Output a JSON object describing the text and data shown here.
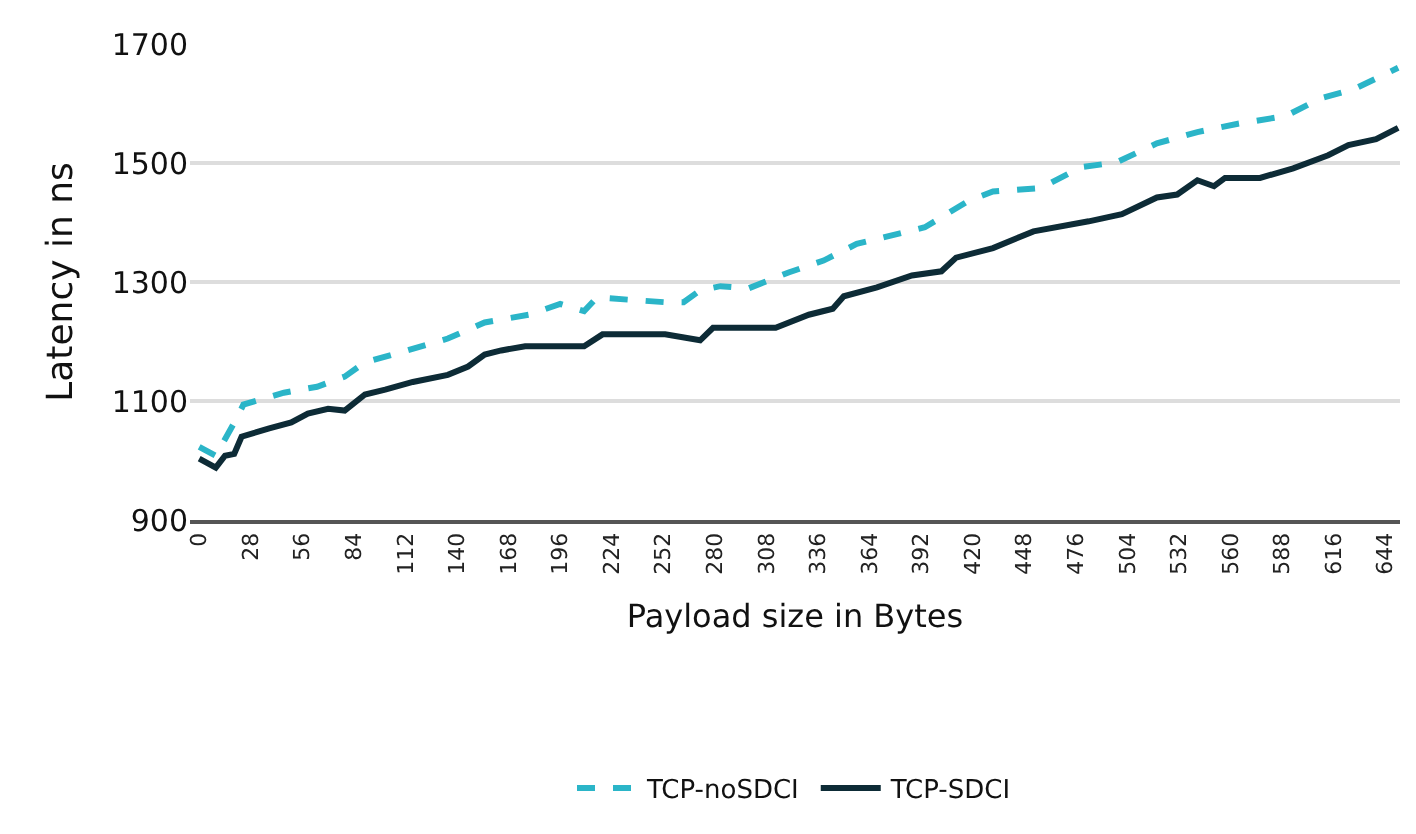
{
  "chart_data": {
    "type": "line",
    "xlabel": "Payload size in Bytes",
    "ylabel": "Latency in ns",
    "xlim": [
      -5,
      652
    ],
    "xticks": [
      0,
      28,
      56,
      84,
      112,
      140,
      168,
      196,
      224,
      252,
      280,
      308,
      336,
      364,
      392,
      420,
      448,
      476,
      504,
      532,
      560,
      588,
      616,
      644
    ],
    "ylim": [
      900,
      1700
    ],
    "yticks": [
      900,
      1100,
      1300,
      1500,
      1700
    ],
    "grid": "y",
    "legend": "bottom",
    "marker": "none",
    "series": [
      {
        "name": "TCP-noSDCI",
        "color": "#2bb5c8",
        "line_style": "dashed",
        "x": [
          0,
          9,
          20,
          24,
          46,
          64,
          79,
          90,
          113,
          135,
          155,
          179,
          196,
          209,
          216,
          253,
          263,
          272,
          283,
          298,
          320,
          339,
          357,
          394,
          418,
          431,
          457,
          479,
          498,
          520,
          542,
          564,
          590,
          609,
          627,
          651
        ],
        "values": [
          1023,
          1008,
          1069,
          1094,
          1114,
          1124,
          1141,
          1165,
          1185,
          1205,
          1232,
          1245,
          1263,
          1251,
          1274,
          1266,
          1266,
          1286,
          1293,
          1289,
          1316,
          1336,
          1364,
          1392,
          1437,
          1452,
          1458,
          1493,
          1501,
          1533,
          1552,
          1566,
          1579,
          1609,
          1624,
          1660
        ]
      },
      {
        "name": "TCP-SDCI",
        "color": "#0d2b36",
        "line_style": "solid",
        "x": [
          0,
          9,
          14,
          19,
          23,
          38,
          50,
          59,
          70,
          79,
          90,
          101,
          116,
          135,
          146,
          155,
          164,
          177,
          209,
          219,
          253,
          272,
          279,
          298,
          313,
          331,
          344,
          350,
          368,
          387,
          403,
          411,
          431,
          453,
          483,
          501,
          520,
          531,
          542,
          551,
          557,
          576,
          594,
          613,
          624,
          639,
          651
        ],
        "values": [
          1003,
          988,
          1008,
          1011,
          1040,
          1054,
          1064,
          1079,
          1087,
          1084,
          1111,
          1119,
          1132,
          1144,
          1158,
          1178,
          1185,
          1192,
          1192,
          1212,
          1212,
          1202,
          1223,
          1223,
          1223,
          1245,
          1255,
          1276,
          1291,
          1311,
          1318,
          1341,
          1357,
          1385,
          1402,
          1414,
          1442,
          1447,
          1471,
          1461,
          1475,
          1475,
          1491,
          1513,
          1530,
          1540,
          1559
        ]
      }
    ]
  }
}
